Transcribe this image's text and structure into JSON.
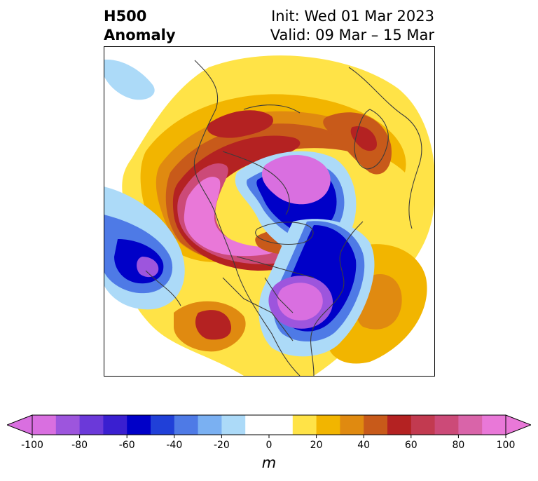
{
  "header": {
    "title_line1": "H500",
    "title_line2": "Anomaly",
    "init": "Init: Wed 01 Mar 2023",
    "valid": "Valid: 09 Mar – 15 Mar"
  },
  "colorbar": {
    "unit": "m",
    "ticks": [
      "-100",
      "-80",
      "-60",
      "-40",
      "-20",
      "0",
      "20",
      "40",
      "60",
      "80",
      "100"
    ],
    "min": -100,
    "max": 100,
    "step": 10,
    "colors": [
      "#d96fe0",
      "#9d55dd",
      "#6b39d9",
      "#3a1fd0",
      "#0000c8",
      "#2040d8",
      "#4e7ae6",
      "#7ab0f2",
      "#acdaf8",
      "#ffffff",
      "#ffffff",
      "#ffe347",
      "#f2b500",
      "#e08a10",
      "#c85a1a",
      "#b42222",
      "#c23a50",
      "#cc4a78",
      "#d964a9",
      "#e978d8"
    ]
  },
  "map": {
    "region": "North America / North Atlantic polar stereographic",
    "centers": [
      {
        "sign": "negative",
        "label": "trough-north-pacific",
        "peak": -90
      },
      {
        "sign": "negative",
        "label": "trough-hudson-bay",
        "peak": -95
      },
      {
        "sign": "negative",
        "label": "trough-great-lakes",
        "peak": -95
      },
      {
        "sign": "positive",
        "label": "ridge-bering-alaska",
        "peak": 100
      },
      {
        "sign": "positive",
        "label": "ridge-arctic",
        "peak": 60
      },
      {
        "sign": "positive",
        "label": "ridge-scandinavia",
        "peak": 60
      },
      {
        "sign": "positive",
        "label": "ridge-southwest-us",
        "peak": 60
      },
      {
        "sign": "positive",
        "label": "ridge-atlantic",
        "peak": 40
      }
    ]
  }
}
